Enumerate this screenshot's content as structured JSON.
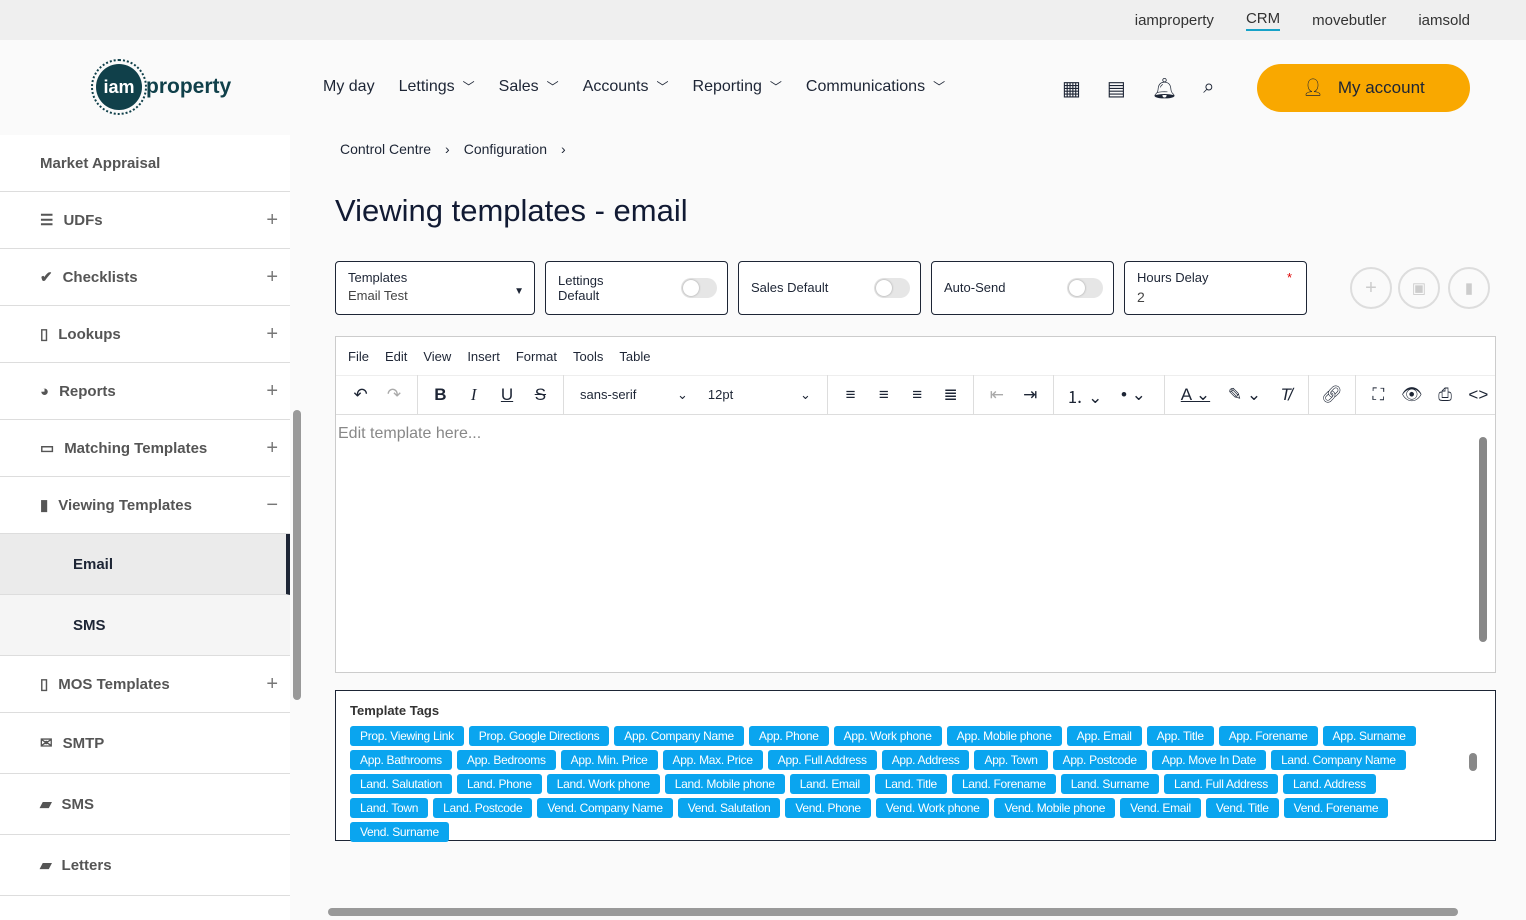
{
  "topbar": {
    "links": [
      "iamproperty",
      "CRM",
      "movebutler",
      "iamsold"
    ],
    "active": "CRM"
  },
  "logo": {
    "circle": "iam",
    "text": "property"
  },
  "nav": [
    "My day",
    "Lettings",
    "Sales",
    "Accounts",
    "Reporting",
    "Communications"
  ],
  "header": {
    "my_account": "My account"
  },
  "sidebar": {
    "items": [
      {
        "label": "Market Appraisal",
        "icon": "",
        "expand": ""
      },
      {
        "label": "UDFs",
        "icon": "list-icon",
        "expand": "+"
      },
      {
        "label": "Checklists",
        "icon": "check-circle-icon",
        "expand": "+"
      },
      {
        "label": "Lookups",
        "icon": "file-search-icon",
        "expand": "+"
      },
      {
        "label": "Reports",
        "icon": "pie-chart-icon",
        "expand": "+"
      },
      {
        "label": "Matching Templates",
        "icon": "layout-icon",
        "expand": "+"
      },
      {
        "label": "Viewing Templates",
        "icon": "message-alert-icon",
        "expand": "−"
      }
    ],
    "subitems": [
      "Email",
      "SMS"
    ],
    "items2": [
      {
        "label": "MOS Templates",
        "icon": "file-icon",
        "expand": "+"
      },
      {
        "label": "SMTP",
        "icon": "envelope-icon",
        "expand": ""
      },
      {
        "label": "SMS",
        "icon": "sms-icon",
        "expand": ""
      },
      {
        "label": "Letters",
        "icon": "mailbox-icon",
        "expand": ""
      }
    ]
  },
  "breadcrumb": [
    "Control Centre",
    "Configuration"
  ],
  "page_title": "Viewing templates - email",
  "controls": {
    "templates_label": "Templates",
    "templates_value": "Email Test",
    "lettings_default": "Lettings Default",
    "lettings_default_on": false,
    "sales_default": "Sales Default",
    "sales_default_on": false,
    "auto_send": "Auto-Send",
    "auto_send_on": false,
    "hours_delay_label": "Hours Delay",
    "hours_delay_value": "2",
    "required": "*"
  },
  "editor": {
    "menu": [
      "File",
      "Edit",
      "View",
      "Insert",
      "Format",
      "Tools",
      "Table"
    ],
    "font": "sans-serif",
    "size": "12pt",
    "placeholder": "Edit template here..."
  },
  "tags": {
    "title": "Template Tags",
    "items": [
      "Prop. Viewing Link",
      "Prop. Google Directions",
      "App. Company Name",
      "App. Phone",
      "App. Work phone",
      "App. Mobile phone",
      "App. Email",
      "App. Title",
      "App. Forename",
      "App. Surname",
      "App. Bathrooms",
      "App. Bedrooms",
      "App. Min. Price",
      "App. Max. Price",
      "App. Full Address",
      "App. Address",
      "App. Town",
      "App. Postcode",
      "App. Move In Date",
      "Land. Company Name",
      "Land. Salutation",
      "Land. Phone",
      "Land. Work phone",
      "Land. Mobile phone",
      "Land. Email",
      "Land. Title",
      "Land. Forename",
      "Land. Surname",
      "Land. Full Address",
      "Land. Address",
      "Land. Town",
      "Land. Postcode",
      "Vend. Company Name",
      "Vend. Salutation",
      "Vend. Phone",
      "Vend. Work phone",
      "Vend. Mobile phone",
      "Vend. Email",
      "Vend. Title",
      "Vend. Forename",
      "Vend. Surname"
    ]
  },
  "colors": {
    "accent": "#f9a800",
    "tag": "#0aa5ef",
    "dark": "#1d2535"
  }
}
